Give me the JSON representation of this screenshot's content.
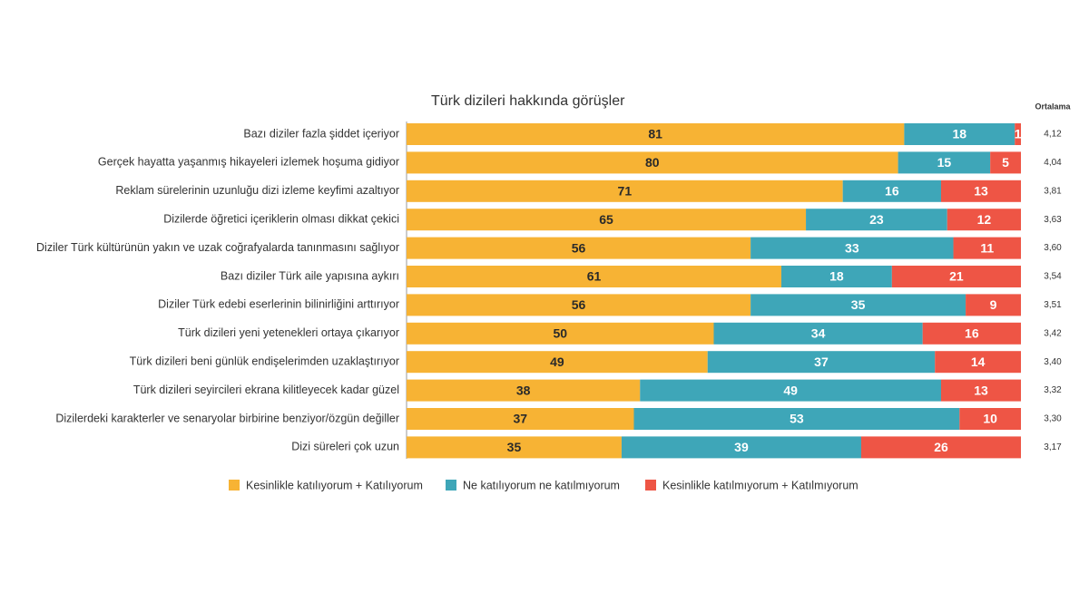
{
  "chart_data": {
    "type": "stacked-bar-horizontal",
    "title": "Türk dizileri hakkında görüşler",
    "categories": [
      "Bazı diziler fazla şiddet içeriyor",
      "Gerçek hayatta yaşanmış hikayeleri izlemek hoşuma gidiyor",
      "Reklam sürelerinin uzunluğu dizi izleme keyfimi azaltıyor",
      "Dizilerde öğretici içeriklerin olması dikkat çekici",
      "Diziler Türk kültürünün yakın ve uzak coğrafyalarda tanınmasını sağlıyor",
      "Bazı diziler Türk aile yapısına aykırı",
      "Diziler Türk edebi eserlerinin bilinirliğini arttırıyor",
      "Türk dizileri yeni yetenekleri ortaya çıkarıyor",
      "Türk dizileri beni günlük endişelerimden uzaklaştırıyor",
      "Türk dizileri seyircileri ekrana kilitleyecek kadar güzel",
      "Dizilerdeki karakterler ve senaryolar birbirine benziyor/özgün değiller",
      "Dizi süreleri çok uzun"
    ],
    "series": [
      {
        "name": "Kesinlikle katılıyorum + Katılıyorum",
        "color": "#f7b334",
        "label_color": "#2a2a2a",
        "values": [
          81,
          80,
          71,
          65,
          56,
          61,
          56,
          50,
          49,
          38,
          37,
          35
        ]
      },
      {
        "name": "Ne katılıyorum ne katılmıyorum",
        "color": "#3ea6b8",
        "label_color": "#ffffff",
        "values": [
          18,
          15,
          16,
          23,
          33,
          18,
          35,
          34,
          37,
          49,
          53,
          39
        ]
      },
      {
        "name": "Kesinlikle katılmıyorum + Katılmıyorum",
        "color": "#ee5545",
        "label_color": "#ffffff",
        "values": [
          1,
          5,
          13,
          12,
          11,
          21,
          9,
          16,
          14,
          13,
          10,
          26
        ]
      }
    ],
    "ortalama": {
      "title": "Ortalama",
      "labels": [
        "4,12",
        "4,04",
        "3,81",
        "3,63",
        "3,60",
        "3,54",
        "3,51",
        "3,42",
        "3,40",
        "3,32",
        "3,30",
        "3,17"
      ]
    }
  }
}
